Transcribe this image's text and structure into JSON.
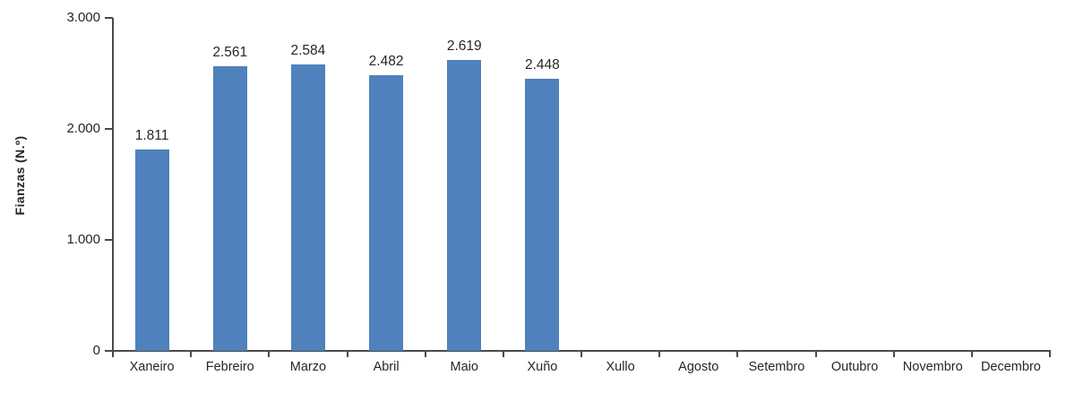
{
  "chart_data": {
    "type": "bar",
    "title": "",
    "categories": [
      "Xaneiro",
      "Febreiro",
      "Marzo",
      "Abril",
      "Maio",
      "Xuño",
      "Xullo",
      "Agosto",
      "Setembro",
      "Outubro",
      "Novembro",
      "Decembro"
    ],
    "values": [
      1811,
      2561,
      2584,
      2482,
      2619,
      2448,
      null,
      null,
      null,
      null,
      null,
      null
    ],
    "value_labels": [
      "1.811",
      "2.561",
      "2.584",
      "2.482",
      "2.619",
      "2.448",
      "",
      "",
      "",
      "",
      "",
      ""
    ],
    "xlabel": "",
    "ylabel": "Fianzas (N.º)",
    "ylim": [
      0,
      3000
    ],
    "yticks": [
      {
        "value": 0,
        "label": "0"
      },
      {
        "value": 1000,
        "label": "1.000"
      },
      {
        "value": 2000,
        "label": "2.000"
      },
      {
        "value": 3000,
        "label": "3.000"
      }
    ],
    "grid": false,
    "legend": null,
    "colors": {
      "bar": "#4f81bd",
      "axis": "#4a4a4a",
      "text": "#262626",
      "background": "#ffffff"
    }
  }
}
